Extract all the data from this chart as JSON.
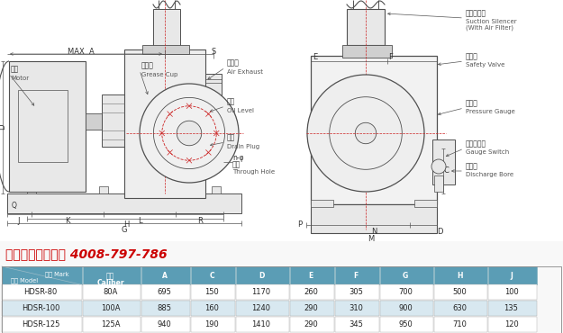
{
  "hotline_text": "华东风机咨询热线 4008-797-786",
  "table_header_bg": "#5b9db5",
  "table_row_bgs": [
    "#ffffff",
    "#d8e8f0",
    "#ffffff"
  ],
  "header_text_color": "#ffffff",
  "columns": [
    "记号 Mark\n型式 Model",
    "口径\nCaliber",
    "A",
    "C",
    "D",
    "E",
    "F",
    "G",
    "H",
    "J"
  ],
  "rows": [
    [
      "HDSR-80",
      "80A",
      "695",
      "150",
      "1170",
      "260",
      "305",
      "700",
      "500",
      "100"
    ],
    [
      "HDSR-100",
      "100A",
      "885",
      "160",
      "1240",
      "290",
      "310",
      "900",
      "630",
      "135"
    ],
    [
      "HDSR-125",
      "125A",
      "940",
      "190",
      "1410",
      "290",
      "345",
      "950",
      "710",
      "120"
    ]
  ],
  "bg_color": "#ffffff",
  "diagram_line_color": "#505050",
  "red_line_color": "#cc2222",
  "hotline_color": "#cc0000",
  "fig_bg": "#f8f8f8"
}
